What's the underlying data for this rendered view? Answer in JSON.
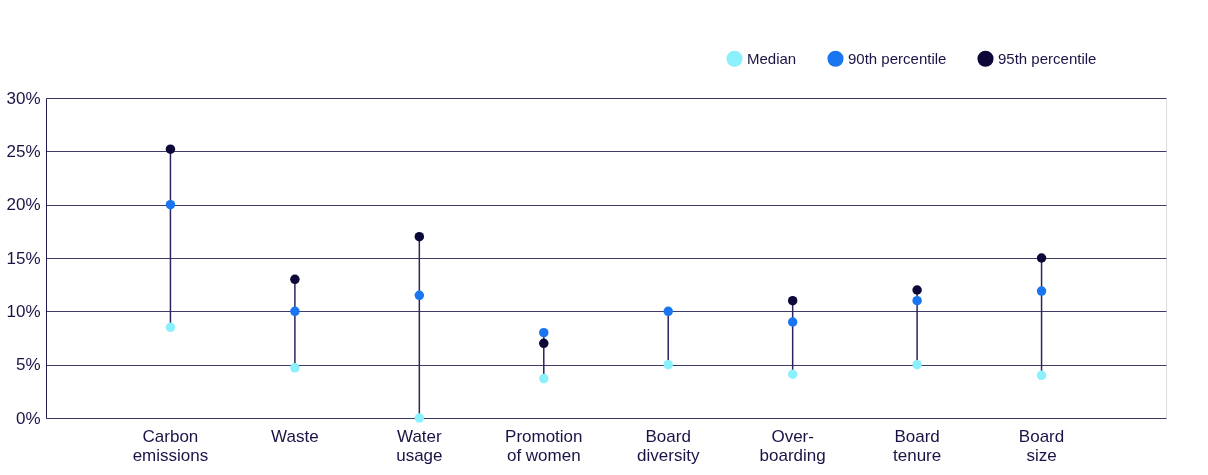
{
  "chart_data": {
    "type": "scatter",
    "categories": [
      "Carbon emissions",
      "Waste",
      "Water usage",
      "Promotion of women",
      "Board diversity",
      "Over-boarding",
      "Board tenure",
      "Board size"
    ],
    "series": [
      {
        "name": "Median",
        "color": "#8cf0fc",
        "values": [
          8.5,
          4.7,
          0,
          3.7,
          5,
          4.1,
          5,
          4
        ]
      },
      {
        "name": "90th percentile",
        "color": "#1a75f0",
        "values": [
          20,
          10,
          11.5,
          8,
          10,
          9,
          11,
          11.9
        ]
      },
      {
        "name": "95th percentile",
        "color": "#0c0838",
        "values": [
          25.2,
          13,
          17,
          7,
          null,
          11,
          12,
          15
        ]
      }
    ],
    "ylim": [
      0,
      30
    ],
    "yticks": [
      {
        "value": 0,
        "label": "0%"
      },
      {
        "value": 5,
        "label": "5%"
      },
      {
        "value": 10,
        "label": "10%"
      },
      {
        "value": 15,
        "label": "15%"
      },
      {
        "value": 20,
        "label": "20%"
      },
      {
        "value": 25,
        "label": "25%"
      },
      {
        "value": 30,
        "label": "30%"
      }
    ],
    "grid": "y",
    "legend": "top right",
    "marker": "circle"
  }
}
